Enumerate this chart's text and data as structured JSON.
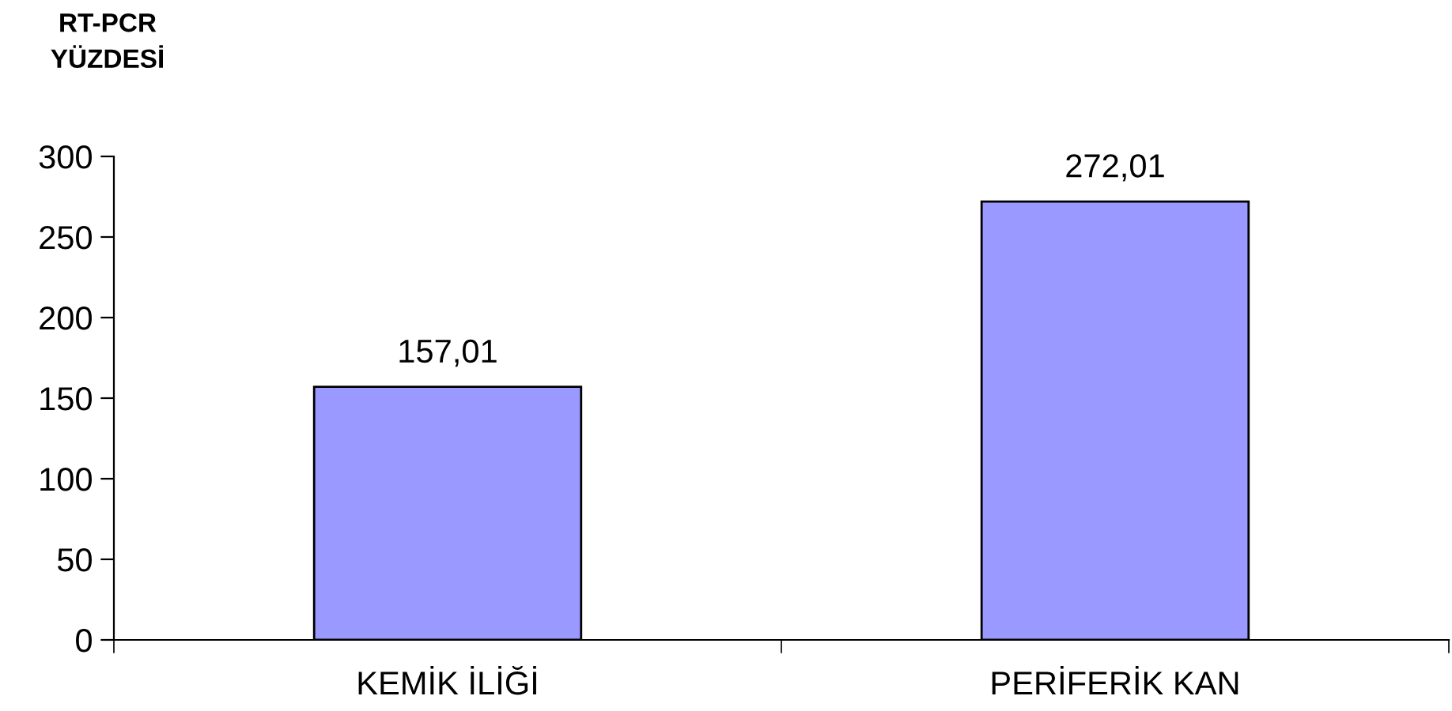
{
  "chart_data": {
    "type": "bar",
    "ylabel": "RT-PCR\nYÜZDESİ",
    "categories": [
      "KEMİK İLİĞİ",
      "PERİFERİK KAN"
    ],
    "values": [
      157.01,
      272.01
    ],
    "value_labels": [
      "157,01",
      "272,01"
    ],
    "color": "#9999ff",
    "ylim": [
      0,
      300
    ],
    "yticks": [
      0,
      50,
      100,
      150,
      200,
      250,
      300
    ],
    "grid": false,
    "legend": false
  }
}
